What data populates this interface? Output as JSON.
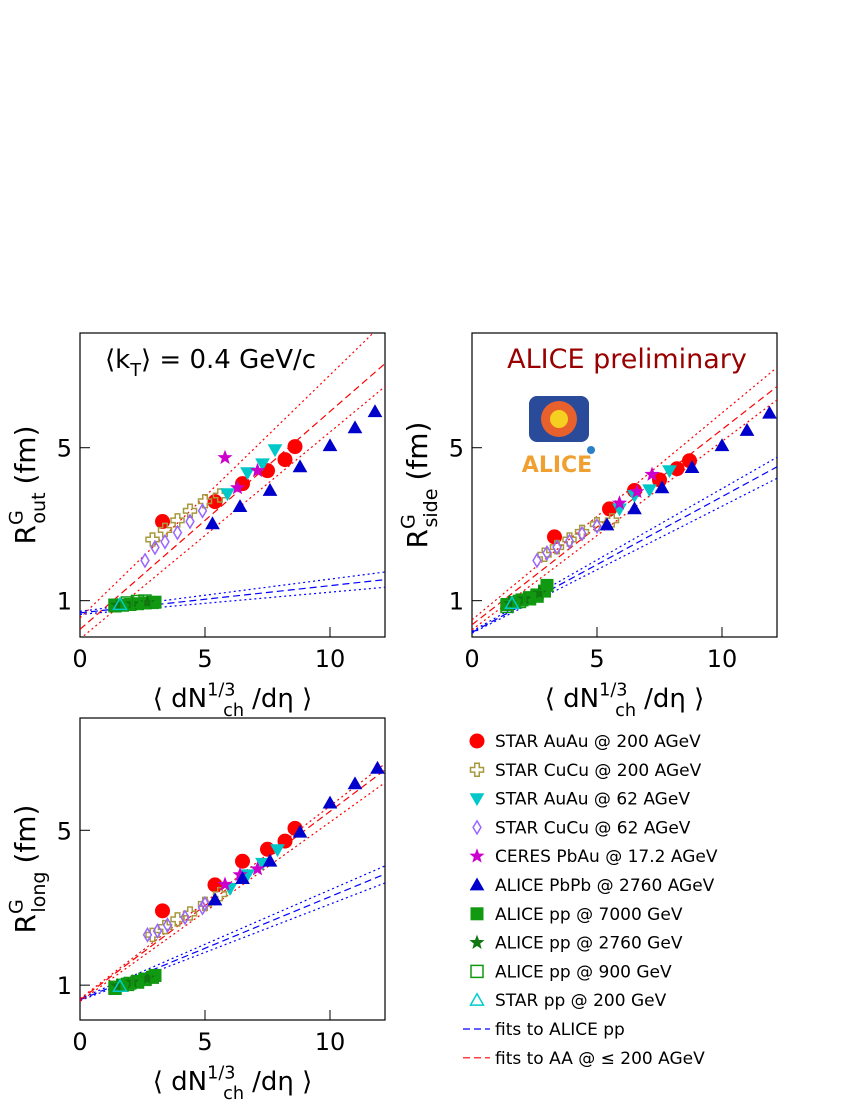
{
  "chart_data": [
    {
      "type": "scatter",
      "annotation": {
        "main": "⟨k",
        "sub": "T",
        "rest": "⟩ = 0.4 GeV/c"
      },
      "xlabel": {
        "main": "⟨ dN",
        "sub": "ch",
        "rest": "/dη ⟩",
        "sup": "1/3"
      },
      "ylabel": {
        "main": "R",
        "sup": "G",
        "sub": "out",
        "rest": "(fm)"
      },
      "xlim": [
        0,
        12.2
      ],
      "ylim": [
        0.05,
        8
      ],
      "xticks": [
        0,
        5,
        10
      ],
      "yticks": [
        1,
        5
      ],
      "series": [
        {
          "color": "#ff0000",
          "marker": "circle",
          "x": [
            3.3,
            5.4,
            6.5,
            7.5,
            8.2,
            8.6
          ],
          "values": [
            3.07,
            3.59,
            4.06,
            4.4,
            4.69,
            5.03
          ]
        },
        {
          "color": "#a89a3c",
          "marker": "cross-open",
          "x": [
            2.9,
            3.4,
            3.9,
            4.4,
            5.0,
            5.6
          ],
          "values": [
            2.6,
            2.85,
            3.1,
            3.35,
            3.6,
            3.75
          ]
        },
        {
          "color": "#00c8c8",
          "marker": "triangle-down",
          "x": [
            5.9,
            6.7,
            7.3,
            7.8
          ],
          "values": [
            3.8,
            4.35,
            4.58,
            4.95
          ]
        },
        {
          "color": "#9966ff",
          "marker": "diamond-open",
          "x": [
            2.6,
            3.0,
            3.4,
            3.9,
            4.4,
            4.9
          ],
          "values": [
            2.05,
            2.39,
            2.54,
            2.78,
            3.07,
            3.35
          ]
        },
        {
          "color": "#cc00cc",
          "marker": "star",
          "x": [
            5.8,
            6.3,
            7.1
          ],
          "values": [
            4.74,
            3.95,
            4.4
          ]
        },
        {
          "color": "#0000cc",
          "marker": "triangle-up",
          "x": [
            5.3,
            6.4,
            7.6,
            8.8,
            10.0,
            11.0,
            11.8
          ],
          "values": [
            3.01,
            3.46,
            3.88,
            4.5,
            5.05,
            5.52,
            5.94
          ]
        },
        {
          "color": "#119911",
          "marker": "square",
          "x": [
            1.4,
            1.7,
            2.0,
            2.3,
            2.6,
            2.9,
            3.0
          ],
          "values": [
            0.86,
            0.88,
            0.9,
            0.92,
            0.94,
            0.95,
            0.96
          ]
        },
        {
          "color": "#117711",
          "marker": "star",
          "x": [
            1.5,
            2.1,
            2.7
          ],
          "values": [
            0.88,
            0.92,
            0.95
          ]
        },
        {
          "color": "#119911",
          "marker": "square-open",
          "x": [
            1.4,
            1.9,
            2.3,
            2.6
          ],
          "values": [
            0.88,
            0.94,
            0.98,
            0.99
          ]
        },
        {
          "color": "#00cccc",
          "marker": "triangle-open",
          "x": [
            1.6
          ],
          "values": [
            0.9
          ]
        },
        {
          "color": "#0000ff",
          "line": "dashed",
          "x": [
            0,
            12.2
          ],
          "values": [
            0.68,
            1.55
          ]
        },
        {
          "color": "#ff0000",
          "line": "dashed",
          "x": [
            0,
            12.2
          ],
          "values": [
            0.25,
            7.2
          ]
        },
        {
          "color": "#0000ff",
          "line": "dotted",
          "x": [
            0,
            12.2
          ],
          "values": [
            0.72,
            1.75
          ]
        },
        {
          "color": "#0000ff",
          "line": "dotted",
          "x": [
            0,
            12.2
          ],
          "values": [
            0.64,
            1.35
          ]
        },
        {
          "color": "#ff0000",
          "line": "dotted",
          "x": [
            0,
            12.2
          ],
          "values": [
            0.55,
            8.3
          ]
        },
        {
          "color": "#ff0000",
          "line": "dotted",
          "x": [
            0,
            12.2
          ],
          "values": [
            0.0,
            6.6
          ]
        }
      ]
    },
    {
      "type": "scatter",
      "annotation": "ALICE preliminary",
      "logo_text": "ALICE",
      "xlabel": {
        "main": "⟨ dN",
        "sub": "ch",
        "rest": "/dη ⟩",
        "sup": "1/3"
      },
      "ylabel": {
        "main": "R",
        "sup": "G",
        "sub": "side",
        "rest": "(fm)"
      },
      "xlim": [
        0,
        12.2
      ],
      "ylim": [
        0.05,
        8
      ],
      "xticks": [
        0,
        5,
        10
      ],
      "yticks": [
        1,
        5
      ],
      "series": [
        {
          "color": "#ff0000",
          "marker": "circle",
          "x": [
            3.3,
            5.5,
            6.5,
            7.5,
            8.2,
            8.7
          ],
          "values": [
            2.67,
            3.4,
            3.88,
            4.16,
            4.45,
            4.66
          ]
        },
        {
          "color": "#a89a3c",
          "marker": "cross-open",
          "x": [
            2.9,
            3.4,
            3.9,
            4.4,
            5.0,
            5.6
          ],
          "values": [
            2.2,
            2.4,
            2.6,
            2.8,
            3.0,
            3.1
          ]
        },
        {
          "color": "#00c8c8",
          "marker": "triangle-down",
          "x": [
            5.9,
            6.5,
            7.1,
            7.9
          ],
          "values": [
            3.4,
            3.75,
            3.9,
            4.4
          ]
        },
        {
          "color": "#9966ff",
          "marker": "diamond-open",
          "x": [
            2.6,
            3.0,
            3.4,
            3.9,
            4.4,
            5.0
          ],
          "values": [
            2.05,
            2.25,
            2.4,
            2.55,
            2.75,
            2.95
          ]
        },
        {
          "color": "#cc00cc",
          "marker": "star",
          "x": [
            5.9,
            6.6,
            7.2
          ],
          "values": [
            3.55,
            3.85,
            4.3
          ]
        },
        {
          "color": "#0000cc",
          "marker": "triangle-up",
          "x": [
            5.4,
            6.5,
            7.6,
            8.8,
            10.0,
            11.0,
            11.9
          ],
          "values": [
            2.98,
            3.4,
            3.95,
            4.48,
            5.05,
            5.45,
            5.9
          ]
        },
        {
          "color": "#119911",
          "marker": "square",
          "x": [
            1.4,
            1.7,
            2.0,
            2.3,
            2.6,
            2.9,
            3.0
          ],
          "values": [
            0.9,
            0.95,
            1.02,
            1.08,
            1.15,
            1.25,
            1.4
          ]
        },
        {
          "color": "#117711",
          "marker": "star",
          "x": [
            1.5,
            2.1,
            2.7
          ],
          "values": [
            0.95,
            1.05,
            1.2
          ]
        },
        {
          "color": "#119911",
          "marker": "square-open",
          "x": [
            1.4,
            1.9,
            2.3,
            2.6
          ],
          "values": [
            0.85,
            0.98,
            1.05,
            1.12
          ]
        },
        {
          "color": "#00cccc",
          "marker": "triangle-open",
          "x": [
            1.6
          ],
          "values": [
            0.93
          ]
        },
        {
          "color": "#0000ff",
          "line": "dashed",
          "x": [
            0,
            12.2
          ],
          "values": [
            0.17,
            4.5
          ]
        },
        {
          "color": "#ff0000",
          "line": "dashed",
          "x": [
            0,
            12.2
          ],
          "values": [
            0.37,
            6.6
          ]
        },
        {
          "color": "#0000ff",
          "line": "dotted",
          "x": [
            0,
            12.2
          ],
          "values": [
            0.2,
            4.75
          ]
        },
        {
          "color": "#0000ff",
          "line": "dotted",
          "x": [
            0,
            12.2
          ],
          "values": [
            0.15,
            4.2
          ]
        },
        {
          "color": "#ff0000",
          "line": "dotted",
          "x": [
            0,
            12.2
          ],
          "values": [
            0.5,
            7.1
          ]
        },
        {
          "color": "#ff0000",
          "line": "dotted",
          "x": [
            0,
            12.2
          ],
          "values": [
            0.24,
            6.25
          ]
        }
      ]
    },
    {
      "type": "scatter",
      "xlabel": {
        "main": "⟨ dN",
        "sub": "ch",
        "rest": "/dη ⟩",
        "sup": "1/3"
      },
      "ylabel": {
        "main": "R",
        "sup": "G",
        "sub": "long",
        "rest": "(fm)"
      },
      "xlim": [
        0,
        12.2
      ],
      "ylim": [
        0.1,
        7.9
      ],
      "xticks": [
        0,
        5,
        10
      ],
      "yticks": [
        1,
        5
      ],
      "series": [
        {
          "name": "STAR AuAu @ 200 AGeV",
          "color": "#ff0000",
          "marker": "circle",
          "x": [
            3.3,
            5.4,
            6.5,
            7.5,
            8.2,
            8.6
          ],
          "values": [
            2.92,
            3.59,
            4.2,
            4.51,
            4.72,
            5.05
          ]
        },
        {
          "name": "STAR CuCu @ 200 AGeV",
          "color": "#a89a3c",
          "marker": "cross-open",
          "x": [
            2.9,
            3.4,
            3.9,
            4.4,
            5.0,
            5.6
          ],
          "values": [
            2.3,
            2.5,
            2.7,
            2.85,
            3.1,
            3.35
          ]
        },
        {
          "name": "STAR AuAu @ 62 AGeV",
          "color": "#00c8c8",
          "marker": "triangle-down",
          "x": [
            6.0,
            6.7,
            7.3,
            7.9
          ],
          "values": [
            3.5,
            3.85,
            4.15,
            4.5
          ]
        },
        {
          "name": "STAR CuCu @ 62 AGeV",
          "color": "#9966ff",
          "marker": "diamond-open",
          "x": [
            2.7,
            3.1,
            3.5,
            4.2,
            4.9,
            5.0
          ],
          "values": [
            2.3,
            2.4,
            2.55,
            2.75,
            3.0,
            3.1
          ]
        },
        {
          "name": "CERES PbAu @ 17.2 AGeV",
          "color": "#cc00cc",
          "marker": "star",
          "x": [
            5.8,
            6.4,
            7.1
          ],
          "values": [
            3.6,
            3.85,
            4.0
          ]
        },
        {
          "name": "ALICE PbPb @ 2760 AGeV",
          "color": "#0000cc",
          "marker": "triangle-up",
          "x": [
            5.4,
            6.5,
            7.6,
            8.8,
            10.0,
            11.0,
            11.9
          ],
          "values": [
            3.2,
            3.75,
            4.2,
            4.95,
            5.7,
            6.2,
            6.6
          ]
        },
        {
          "name": "ALICE pp @ 7000 GeV",
          "color": "#119911",
          "marker": "square",
          "x": [
            1.4,
            1.7,
            2.0,
            2.3,
            2.6,
            2.9,
            3.0
          ],
          "values": [
            0.95,
            1.0,
            1.05,
            1.1,
            1.15,
            1.2,
            1.25
          ]
        },
        {
          "name": "ALICE pp @ 2760 GeV",
          "color": "#117711",
          "marker": "star",
          "x": [
            1.5,
            2.1,
            2.7
          ],
          "values": [
            0.98,
            1.08,
            1.18
          ]
        },
        {
          "name": "ALICE pp @ 900 GeV",
          "color": "#119911",
          "marker": "square-open",
          "x": [
            1.4,
            1.9,
            2.3,
            2.6
          ],
          "values": [
            0.92,
            1.02,
            1.08,
            1.15
          ]
        },
        {
          "name": "STAR pp @ 200 GeV",
          "color": "#00cccc",
          "marker": "triangle-open",
          "x": [
            1.6
          ],
          "values": [
            0.97
          ]
        },
        {
          "name": "fits to ALICE pp",
          "color": "#0000ff",
          "line": "dashed",
          "x": [
            0,
            12.2
          ],
          "values": [
            0.62,
            3.87
          ]
        },
        {
          "name": "fits to AA @ ≤ 200 AGeV",
          "color": "#ff0000",
          "line": "dashed",
          "x": [
            0,
            12.2
          ],
          "values": [
            0.62,
            6.56
          ]
        },
        {
          "color": "#0000ff",
          "line": "dotted",
          "x": [
            0,
            12.2
          ],
          "values": [
            0.65,
            4.08
          ]
        },
        {
          "color": "#0000ff",
          "line": "dotted",
          "x": [
            0,
            12.2
          ],
          "values": [
            0.6,
            3.64
          ]
        },
        {
          "color": "#ff0000",
          "line": "dotted",
          "x": [
            0,
            12.2
          ],
          "values": [
            0.65,
            6.72
          ]
        },
        {
          "color": "#ff0000",
          "line": "dotted",
          "x": [
            0,
            12.2
          ],
          "values": [
            0.58,
            6.23
          ]
        }
      ]
    }
  ]
}
